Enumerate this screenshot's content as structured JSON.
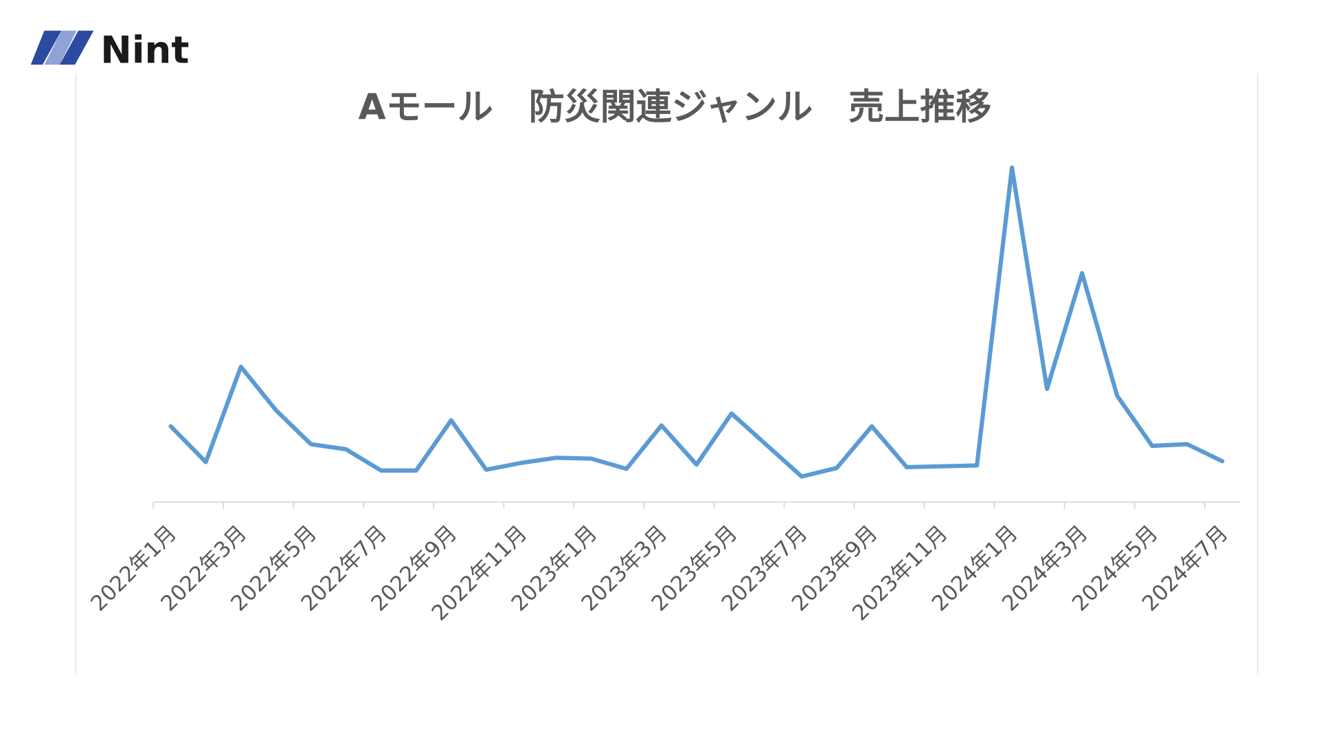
{
  "logo": "Nint",
  "chart_data": {
    "type": "line",
    "title": "Aモール　防災関連ジャンル　売上推移",
    "categories": [
      "2022年1月",
      null,
      "2022年3月",
      null,
      "2022年5月",
      null,
      "2022年7月",
      null,
      "2022年9月",
      null,
      "2022年11月",
      null,
      "2023年1月",
      null,
      "2023年3月",
      null,
      "2023年5月",
      null,
      "2023年7月",
      null,
      "2023年9月",
      null,
      "2023年11月",
      null,
      "2024年1月",
      null,
      "2024年3月",
      null,
      "2024年5月",
      null,
      "2024年7月"
    ],
    "series": [
      {
        "color": "#5b9bd5",
        "values": [
          89,
          47,
          159,
          108,
          68,
          62,
          37,
          37,
          96,
          38,
          46,
          52,
          51,
          39,
          90,
          44,
          104,
          67,
          30,
          40,
          89,
          41,
          42,
          43,
          393,
          133,
          269,
          125,
          66,
          68,
          48
        ]
      }
    ],
    "ylim": [
      0,
      420
    ]
  }
}
